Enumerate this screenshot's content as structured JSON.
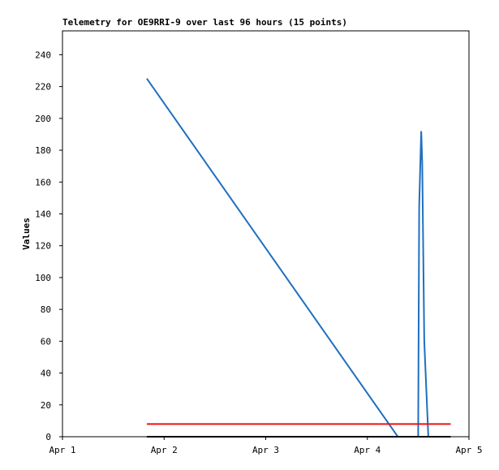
{
  "chart_data": {
    "type": "line",
    "title": "Telemetry for OE9RRI-9 over last 96 hours (15 points)",
    "y_label": "Values",
    "xlim": [
      1,
      5
    ],
    "xticks": [
      {
        "value": 1,
        "label": "Apr 1"
      },
      {
        "value": 2,
        "label": "Apr 2"
      },
      {
        "value": 3,
        "label": "Apr 3"
      },
      {
        "value": 4,
        "label": "Apr 4"
      },
      {
        "value": 5,
        "label": "Apr 5"
      }
    ],
    "ylim": [
      0,
      255
    ],
    "yticks": [
      0,
      20,
      40,
      60,
      80,
      100,
      120,
      140,
      160,
      180,
      200,
      220,
      240
    ],
    "series": [
      {
        "color": "#1f6fc0",
        "x": [
          1.83,
          4.3,
          4.5,
          4.51,
          4.53,
          4.54,
          4.56,
          4.6
        ],
        "values": [
          225,
          0,
          0,
          145,
          192,
          172,
          60,
          0
        ]
      },
      {
        "color": "#ee1111",
        "x": [
          1.83,
          4.82
        ],
        "values": [
          8,
          8
        ]
      },
      {
        "color": "#000000",
        "x": [
          1.83,
          4.82
        ],
        "values": [
          0,
          0
        ]
      }
    ]
  }
}
